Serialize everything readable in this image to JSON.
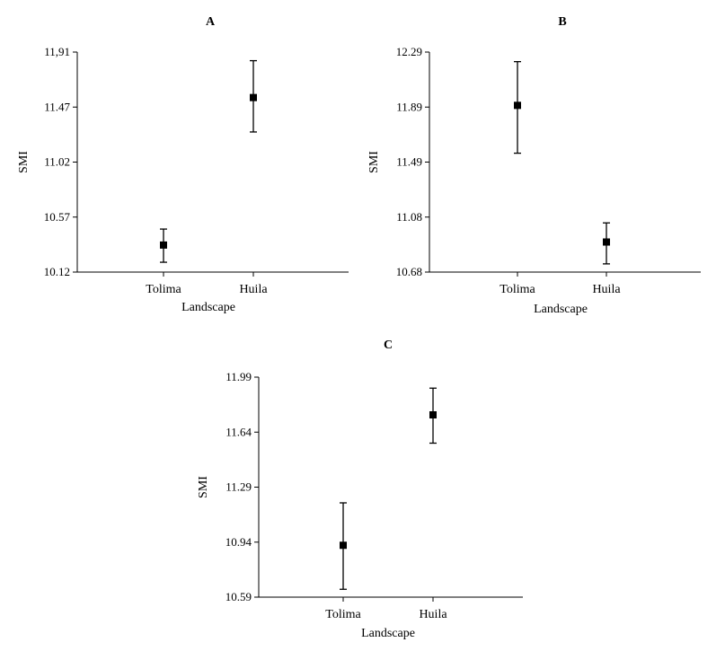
{
  "chart_data": [
    {
      "type": "scatter",
      "title": "A",
      "xlabel": "Landscape",
      "ylabel": "SMI",
      "yticks": [
        "10.12",
        "10.57",
        "11.02",
        "11.47",
        "11,91"
      ],
      "ylim": [
        10.12,
        11.91
      ],
      "categories": [
        "Tolima",
        "Huila"
      ],
      "series": [
        {
          "means": [
            10.34,
            11.54
          ],
          "lower": [
            10.2,
            11.26
          ],
          "upper": [
            10.47,
            11.84
          ]
        }
      ]
    },
    {
      "type": "scatter",
      "title": "B",
      "xlabel": "Landscape",
      "ylabel": "SMI",
      "yticks": [
        "10.68",
        "11.08",
        "11.49",
        "11.89",
        "12.29"
      ],
      "ylim": [
        10.68,
        12.29
      ],
      "categories": [
        "Tolima",
        "Huila"
      ],
      "series": [
        {
          "means": [
            11.9,
            10.9
          ],
          "lower": [
            11.55,
            10.74
          ],
          "upper": [
            12.22,
            11.04
          ]
        }
      ]
    },
    {
      "type": "scatter",
      "title": "C",
      "xlabel": "Landscape",
      "ylabel": "SMI",
      "yticks": [
        "10.59",
        "10.94",
        "11.29",
        "11.64",
        "11.99"
      ],
      "ylim": [
        10.59,
        11.99
      ],
      "categories": [
        "Tolima",
        "Huila"
      ],
      "series": [
        {
          "means": [
            10.92,
            11.75
          ],
          "lower": [
            10.64,
            11.57
          ],
          "upper": [
            11.19,
            11.92
          ]
        }
      ]
    }
  ]
}
